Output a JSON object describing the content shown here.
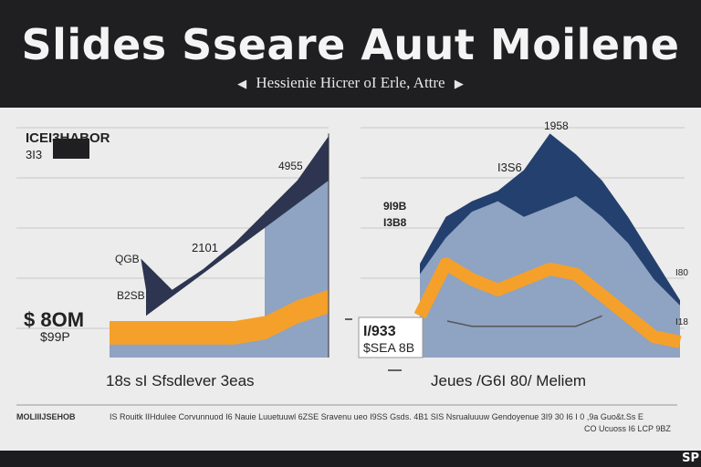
{
  "header": {
    "title": "Slides Sseare Auut Moilene",
    "subtitle": "Hessienie Hicrer  oI Erle, Attre",
    "prev_icon": "chevron-left-icon",
    "next_icon": "chevron-right-icon"
  },
  "footer": {
    "brand": "SP"
  },
  "colors": {
    "navy": "#243a66",
    "steel": "#8fa3c2",
    "orange": "#f5a02a",
    "dark": "#2d3550",
    "bg": "#ececec"
  },
  "chart_data": [
    {
      "type": "area",
      "title": "ICEI3HABOR",
      "legend_label": "3I3",
      "caption": "18s sI Sfsdlever 3eas",
      "annotations": {
        "top": "4955",
        "mid": "2101",
        "low": "QGB",
        "base": "B2SB",
        "left_big": "$ 8OM",
        "left_small": "$99P"
      },
      "x": [
        0,
        1,
        2,
        3,
        4,
        5,
        6,
        7
      ],
      "series": [
        {
          "name": "Steel base",
          "values": [
            0,
            0,
            0,
            0,
            0,
            0,
            0,
            0
          ]
        },
        {
          "name": "Orange band",
          "values": [
            1.4,
            1.4,
            1.4,
            1.4,
            1.4,
            1.6,
            2.2,
            2.6
          ]
        },
        {
          "name": "Navy line",
          "values": [
            2.6,
            3.8,
            2.6,
            3.4,
            4.4,
            5.6,
            6.8,
            8.5
          ]
        }
      ],
      "ylim": [
        0,
        9
      ]
    },
    {
      "type": "area",
      "title": "",
      "caption": "Jeues /G6I 80/ Meliem",
      "annotations": {
        "peak": "1958",
        "upper": "I3S6",
        "left_a": "9I9B",
        "left_b": "I3B8",
        "mid_box_a": "I/933",
        "mid_box_b": "$SEA 8B",
        "right_a": "I80",
        "right_b": "I18"
      },
      "x": [
        0,
        1,
        2,
        3,
        4,
        5,
        6,
        7,
        8,
        9,
        10
      ],
      "series": [
        {
          "name": "Navy mountain",
          "values": [
            3.6,
            5.4,
            6.0,
            6.4,
            7.2,
            8.6,
            7.8,
            6.8,
            5.4,
            3.8,
            2.2
          ]
        },
        {
          "name": "Steel mountain",
          "values": [
            3.2,
            4.6,
            5.6,
            6.0,
            5.4,
            5.8,
            6.2,
            5.4,
            4.4,
            3.0,
            2.0
          ]
        },
        {
          "name": "Orange line",
          "values": [
            1.6,
            3.6,
            3.0,
            2.6,
            3.0,
            3.4,
            3.2,
            2.4,
            1.6,
            0.8,
            0.6
          ]
        }
      ],
      "ylim": [
        0,
        9
      ]
    }
  ],
  "footnotes": {
    "left": "MOLIIIJSEHOB",
    "middle": "IS Rouitk IIHduIee Corvunnuod I6 Nauie Luuetuuwl 6ZSE Sravenu ueo I9SS Gsds. 4B1 SIS Nsrualuuuw Gendoyenue 3I9 30 I6 I 0 ,9a Guo&t.Ss E",
    "right_line": "CO Ucuoss I6 LCP 9BZ"
  }
}
